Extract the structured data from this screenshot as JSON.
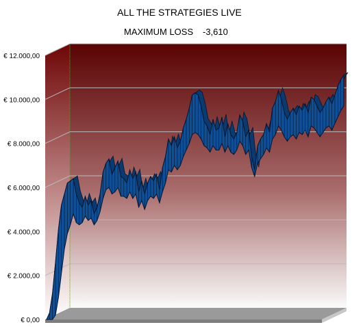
{
  "chart_data": {
    "type": "area",
    "title": "ALL THE STRATEGIES LIVE",
    "subtitle_label": "MAXIMUM LOSS",
    "subtitle_value": "-3,610",
    "xlabel": "",
    "ylabel": "",
    "ylim": [
      0,
      12000
    ],
    "yticks": [
      {
        "value": 0,
        "label": "€ 0,00"
      },
      {
        "value": 2000,
        "label": "€ 2.000,00"
      },
      {
        "value": 4000,
        "label": "€ 4.000,00"
      },
      {
        "value": 6000,
        "label": "€ 6.000,00"
      },
      {
        "value": 8000,
        "label": "€ 8.000,00"
      },
      {
        "value": 10000,
        "label": "€ 10.000,00"
      },
      {
        "value": 12000,
        "label": "€ 12.000,00"
      }
    ],
    "grid": true,
    "legend": "none",
    "style_3d": true,
    "colors": {
      "series_fill": "#0e4f96",
      "series_stroke": "#04152e",
      "wall_top": "#5a0303",
      "wall_bottom": "#fafafa",
      "floor": "#9a9a9a",
      "gridline": "#b9b9b9"
    },
    "series": [
      {
        "values": [
          0,
          300,
          1200,
          2600,
          4100,
          5200,
          5700,
          6200,
          6300,
          6400,
          5700,
          5300,
          5100,
          5600,
          5200,
          5400,
          4800,
          5100,
          5700,
          6700,
          7100,
          7300,
          6600,
          6900,
          7200,
          6500,
          6400,
          6200,
          6800,
          6400,
          6700,
          5800,
          6300,
          5700,
          6200,
          6500,
          6300,
          6600,
          5900,
          6900,
          7400,
          8200,
          7900,
          8300,
          7800,
          8100,
          8700,
          9100,
          9600,
          10200,
          10300,
          10200,
          9700,
          9000,
          8800,
          8400,
          9100,
          8600,
          8700,
          9200,
          8300,
          8900,
          8400,
          8200,
          8500,
          9300,
          9000,
          8300,
          8600,
          7400,
          6800,
          7900,
          8200,
          8400,
          8900,
          8500,
          9600,
          9900,
          10400,
          10000,
          9400,
          9100,
          9400,
          9600,
          9300,
          9700,
          9500,
          9800,
          9400,
          10100,
          10000,
          9700,
          9400,
          9600,
          9900,
          10100,
          9800,
          10200,
          10600,
          10900,
          11100
        ],
        "min_band": [
          0,
          0,
          0,
          200,
          1000,
          2100,
          3200,
          3900,
          4300,
          4800,
          4400,
          4300,
          4400,
          4700,
          4500,
          4600,
          4300,
          4500,
          4900,
          5500,
          5900,
          6000,
          5700,
          5800,
          6000,
          5600,
          5600,
          5500,
          5800,
          5500,
          5700,
          5100,
          5400,
          5000,
          5400,
          5600,
          5500,
          5700,
          5300,
          5800,
          6200,
          6800,
          6700,
          7000,
          6800,
          7000,
          7400,
          7700,
          8000,
          8400,
          8500,
          8400,
          8200,
          7900,
          7800,
          7600,
          7900,
          7700,
          7700,
          8000,
          7600,
          7900,
          7600,
          7500,
          7700,
          8100,
          7900,
          7500,
          7700,
          6900,
          6500,
          7100,
          7300,
          7500,
          7800,
          7600,
          8200,
          8400,
          8800,
          8600,
          8300,
          8100,
          8300,
          8400,
          8200,
          8500,
          8400,
          8600,
          8300,
          8800,
          8700,
          8500,
          8300,
          8500,
          8700,
          8800,
          8600,
          8900,
          9200,
          9500,
          9700
        ]
      }
    ]
  }
}
